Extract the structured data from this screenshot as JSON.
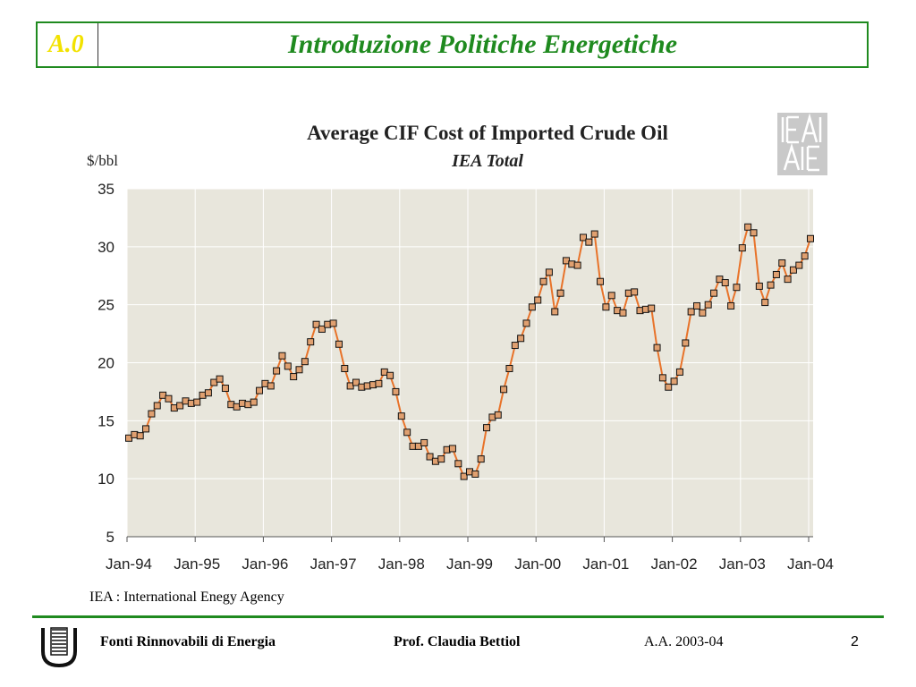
{
  "header": {
    "section": "A.0",
    "title": "Introduzione Politiche Energetiche"
  },
  "chart_data": {
    "type": "line",
    "title": "Average CIF Cost of Imported Crude Oil",
    "subtitle": "IEA Total",
    "ylabel": "$/bbl",
    "ylim": [
      5,
      35
    ],
    "yticks": [
      "5",
      "10",
      "15",
      "20",
      "25",
      "30",
      "35"
    ],
    "xtick_labels": [
      "Jan-94",
      "Jan-95",
      "Jan-96",
      "Jan-97",
      "Jan-98",
      "Jan-99",
      "Jan-00",
      "Jan-01",
      "Jan-02",
      "Jan-03",
      "Jan-04"
    ],
    "x_start": "Jan-94",
    "frequency": "monthly",
    "grid": true,
    "line_color": "#e8732a",
    "marker": "square",
    "values": [
      13.5,
      13.8,
      13.7,
      14.3,
      15.6,
      16.3,
      17.2,
      16.9,
      16.1,
      16.3,
      16.7,
      16.5,
      16.6,
      17.2,
      17.4,
      18.3,
      18.6,
      17.8,
      16.4,
      16.2,
      16.5,
      16.4,
      16.6,
      17.6,
      18.2,
      18.0,
      19.3,
      20.6,
      19.7,
      18.8,
      19.4,
      20.1,
      21.8,
      23.3,
      22.9,
      23.3,
      23.4,
      21.6,
      19.5,
      18.0,
      18.3,
      17.9,
      18.0,
      18.1,
      18.2,
      19.2,
      18.9,
      17.5,
      15.4,
      14.0,
      12.8,
      12.8,
      13.1,
      11.9,
      11.5,
      11.7,
      12.5,
      12.6,
      11.3,
      10.2,
      10.6,
      10.4,
      11.7,
      14.4,
      15.3,
      15.5,
      17.7,
      19.5,
      21.5,
      22.1,
      23.4,
      24.8,
      25.4,
      27.0,
      27.8,
      24.4,
      26.0,
      28.8,
      28.5,
      28.4,
      30.8,
      30.4,
      31.1,
      27.0,
      24.8,
      25.8,
      24.5,
      24.3,
      26.0,
      26.1,
      24.5,
      24.6,
      24.7,
      21.3,
      18.7,
      17.9,
      18.4,
      19.2,
      21.7,
      24.4,
      24.9,
      24.3,
      25.0,
      26.0,
      27.2,
      26.9,
      24.9,
      26.5,
      29.9,
      31.7,
      31.2,
      26.6,
      25.2,
      26.7,
      27.6,
      28.6,
      27.2,
      28.0,
      28.4,
      29.2,
      30.7
    ]
  },
  "footnote": "IEA :  International Enegy Agency",
  "footer": {
    "course": "Fonti Rinnovabili di Energia",
    "author": "Prof. Claudia Bettiol",
    "year": "A.A. 2003-04",
    "page": "2"
  },
  "logos": {
    "iea_logo_text": "IEA AIE",
    "university_logo_text": "U"
  }
}
